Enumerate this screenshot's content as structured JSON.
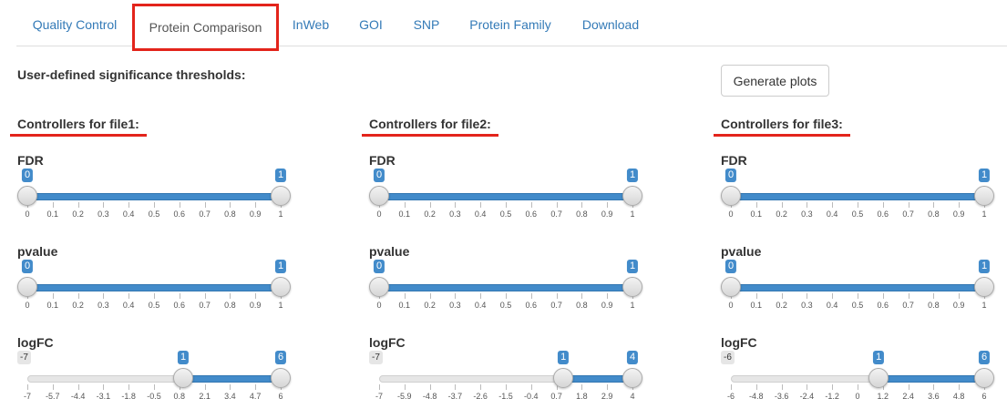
{
  "tabs": [
    {
      "label": "Quality Control",
      "active": false
    },
    {
      "label": "Protein Comparison",
      "active": true
    },
    {
      "label": "InWeb",
      "active": false
    },
    {
      "label": "GOI",
      "active": false
    },
    {
      "label": "SNP",
      "active": false
    },
    {
      "label": "Protein Family",
      "active": false
    },
    {
      "label": "Download",
      "active": false
    }
  ],
  "page_title": "User-defined significance thresholds:",
  "generate_button": "Generate plots",
  "colors": {
    "accent": "#428bca",
    "highlight": "#e3241b",
    "link": "#337ab7"
  },
  "files": [
    {
      "title": "Controllers for file1:",
      "sliders": [
        {
          "label": "FDR",
          "min": 0,
          "max": 1,
          "low": "0",
          "high": "1",
          "low_value": 0,
          "high_value": 1,
          "ticks": [
            "0",
            "0.1",
            "0.2",
            "0.3",
            "0.4",
            "0.5",
            "0.6",
            "0.7",
            "0.8",
            "0.9",
            "1"
          ]
        },
        {
          "label": "pvalue",
          "min": 0,
          "max": 1,
          "low": "0",
          "high": "1",
          "low_value": 0,
          "high_value": 1,
          "ticks": [
            "0",
            "0.1",
            "0.2",
            "0.3",
            "0.4",
            "0.5",
            "0.6",
            "0.7",
            "0.8",
            "0.9",
            "1"
          ]
        },
        {
          "label": "logFC",
          "min": -7,
          "max": 6,
          "min_label": "-7",
          "low": "1",
          "high": "6",
          "low_value": 1,
          "high_value": 6,
          "ticks": [
            "-7",
            "-5.7",
            "-4.4",
            "-3.1",
            "-1.8",
            "-0.5",
            "0.8",
            "2.1",
            "3.4",
            "4.7",
            "6"
          ]
        }
      ]
    },
    {
      "title": "Controllers for file2:",
      "sliders": [
        {
          "label": "FDR",
          "min": 0,
          "max": 1,
          "low": "0",
          "high": "1",
          "low_value": 0,
          "high_value": 1,
          "ticks": [
            "0",
            "0.1",
            "0.2",
            "0.3",
            "0.4",
            "0.5",
            "0.6",
            "0.7",
            "0.8",
            "0.9",
            "1"
          ]
        },
        {
          "label": "pvalue",
          "min": 0,
          "max": 1,
          "low": "0",
          "high": "1",
          "low_value": 0,
          "high_value": 1,
          "ticks": [
            "0",
            "0.1",
            "0.2",
            "0.3",
            "0.4",
            "0.5",
            "0.6",
            "0.7",
            "0.8",
            "0.9",
            "1"
          ]
        },
        {
          "label": "logFC",
          "min": -7,
          "max": 4,
          "min_label": "-7",
          "low": "1",
          "high": "4",
          "low_value": 1,
          "high_value": 4,
          "ticks": [
            "-7",
            "-5.9",
            "-4.8",
            "-3.7",
            "-2.6",
            "-1.5",
            "-0.4",
            "0.7",
            "1.8",
            "2.9",
            "4"
          ]
        }
      ]
    },
    {
      "title": "Controllers for file3:",
      "sliders": [
        {
          "label": "FDR",
          "min": 0,
          "max": 1,
          "low": "0",
          "high": "1",
          "low_value": 0,
          "high_value": 1,
          "ticks": [
            "0",
            "0.1",
            "0.2",
            "0.3",
            "0.4",
            "0.5",
            "0.6",
            "0.7",
            "0.8",
            "0.9",
            "1"
          ]
        },
        {
          "label": "pvalue",
          "min": 0,
          "max": 1,
          "low": "0",
          "high": "1",
          "low_value": 0,
          "high_value": 1,
          "ticks": [
            "0",
            "0.1",
            "0.2",
            "0.3",
            "0.4",
            "0.5",
            "0.6",
            "0.7",
            "0.8",
            "0.9",
            "1"
          ]
        },
        {
          "label": "logFC",
          "min": -6,
          "max": 6,
          "min_label": "-6",
          "low": "1",
          "high": "6",
          "low_value": 1,
          "high_value": 6,
          "ticks": [
            "-6",
            "-4.8",
            "-3.6",
            "-2.4",
            "-1.2",
            "0",
            "1.2",
            "2.4",
            "3.6",
            "4.8",
            "6"
          ]
        }
      ]
    }
  ]
}
